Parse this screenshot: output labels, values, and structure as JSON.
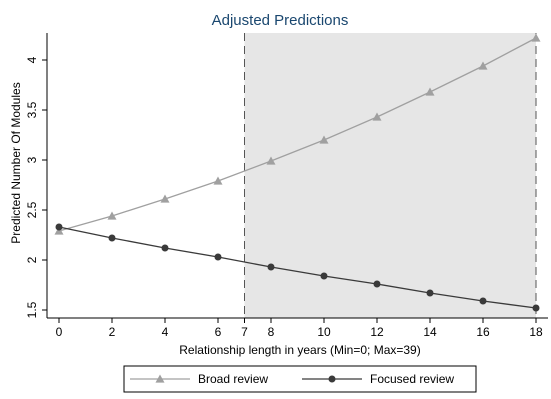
{
  "chart_data": {
    "type": "line",
    "title": "Adjusted Predictions",
    "xlabel": "Relationship length in years (Min=0; Max=39)",
    "ylabel": "Predicted Number Of Modules",
    "xlim": [
      0,
      18
    ],
    "ylim": [
      1.5,
      4.2
    ],
    "x_ticks": [
      0,
      2,
      4,
      6,
      7,
      8,
      10,
      12,
      14,
      16,
      18
    ],
    "y_ticks": [
      1.5,
      2,
      2.5,
      3,
      3.5,
      4
    ],
    "y_tick_labels": [
      "1.5",
      "2",
      "2.5",
      "3",
      "3.5",
      "4"
    ],
    "shaded_region": {
      "x_start": 7,
      "x_end": 18,
      "color": "#e6e6e6"
    },
    "reference_lines": [
      7,
      18
    ],
    "grid": false,
    "legend_position": "bottom",
    "series": [
      {
        "name": "Broad review",
        "marker": "triangle",
        "color": "#a0a0a0",
        "x": [
          0,
          2,
          4,
          6,
          8,
          10,
          12,
          14,
          16,
          18
        ],
        "y": [
          2.29,
          2.44,
          2.61,
          2.79,
          2.99,
          3.2,
          3.43,
          3.68,
          3.94,
          4.22
        ]
      },
      {
        "name": "Focused review",
        "marker": "circle",
        "color": "#3a3a3a",
        "x": [
          0,
          2,
          4,
          6,
          8,
          10,
          12,
          14,
          16,
          18
        ],
        "y": [
          2.33,
          2.22,
          2.12,
          2.03,
          1.93,
          1.84,
          1.76,
          1.67,
          1.59,
          1.52
        ]
      }
    ]
  }
}
